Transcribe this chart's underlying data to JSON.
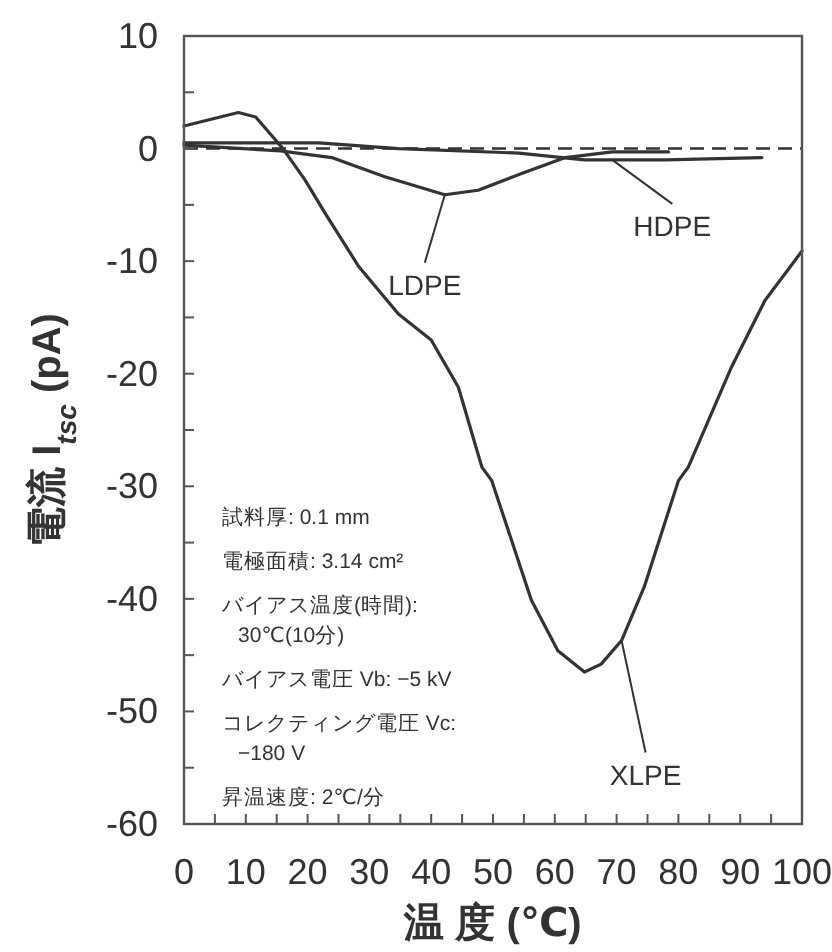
{
  "chart_data": {
    "type": "line",
    "xlabel": "温 度 (℃)",
    "ylabel": "電流 I$_{tsc}$ (pA)",
    "xlim": [
      0,
      100
    ],
    "xticks": [
      0,
      {
        "value": 5,
        "label": null
      },
      10,
      {
        "value": 15,
        "label": null
      },
      20,
      {
        "value": 25,
        "label": null
      },
      30,
      {
        "value": 35,
        "label": null
      },
      40,
      {
        "value": 45,
        "label": null
      },
      50,
      {
        "value": 55,
        "label": null
      },
      60,
      {
        "value": 65,
        "label": null
      },
      70,
      {
        "value": 75,
        "label": null
      },
      80,
      {
        "value": 85,
        "label": null
      },
      90,
      {
        "value": 95,
        "label": null
      },
      100
    ],
    "ylim": [
      -60,
      10
    ],
    "yticks": [
      -60,
      {
        "value": -55,
        "label": null
      },
      -50,
      {
        "value": -45,
        "label": null
      },
      -40,
      {
        "value": -35,
        "label": null
      },
      -30,
      {
        "value": -25,
        "label": null
      },
      -20,
      {
        "value": -15,
        "label": null
      },
      -10,
      {
        "value": -5,
        "label": null
      },
      0,
      {
        "value": 5,
        "label": null
      },
      10
    ],
    "grid": false,
    "line_style": "solid",
    "marker": "none",
    "series": [
      {
        "color": "#333333",
        "x": [
          0,
          8.8,
          11.6,
          16,
          19.6,
          22.9,
          28.3,
          34.7,
          40,
          44.4,
          48.2,
          49.8,
          53,
          56.2,
          60.5,
          64.8,
          67.5,
          70.8,
          74.5,
          80,
          81.6,
          88.6,
          94,
          100
        ],
        "values": [
          2.0,
          3.2,
          2.8,
          0,
          -2.8,
          -5.8,
          -10.5,
          -14.7,
          -17,
          -21.2,
          -28.3,
          -29.5,
          -34.8,
          -40.1,
          -44.6,
          -46.5,
          -45.8,
          -43.7,
          -38.9,
          -29.5,
          -28.3,
          -19.4,
          -13.5,
          -9.1
        ]
      },
      {
        "color": "#333333",
        "x": [
          0,
          15.6,
          23.9,
          32.5,
          42.2,
          47.6,
          54.2,
          61.7,
          69.3,
          78.4
        ],
        "values": [
          0.3,
          -0.2,
          -0.8,
          -2.5,
          -4.1,
          -3.7,
          -2.3,
          -0.8,
          -0.3,
          -0.3
        ]
      },
      {
        "color": "#333333",
        "x": [
          0,
          21.8,
          34.7,
          54.2,
          64.8,
          77.9,
          93.5
        ],
        "values": [
          0.5,
          0.5,
          0,
          -0.4,
          -1.0,
          -1.0,
          -0.8
        ]
      }
    ],
    "ref_lines": [
      {
        "axis": "y",
        "value": 0,
        "line_style": "dashed",
        "color": "#333333"
      }
    ],
    "annotations": [
      {
        "text": "LDPE",
        "x": 42.2,
        "y": -4.1
      },
      {
        "text": "HDPE",
        "x": 69.3,
        "y": -1.0
      },
      {
        "text": "XLPE",
        "x": 70.8,
        "y": -43.7
      },
      "試料厚: 0.1 mm",
      "電極面積: 3.14 cm²",
      "バイアス温度(時間):\n30℃(10分)",
      "バイアス電圧 Vb: −5 kV",
      "コレクティング電圧 Vc:\n−180 V",
      "昇温速度: 2℃/分"
    ]
  }
}
